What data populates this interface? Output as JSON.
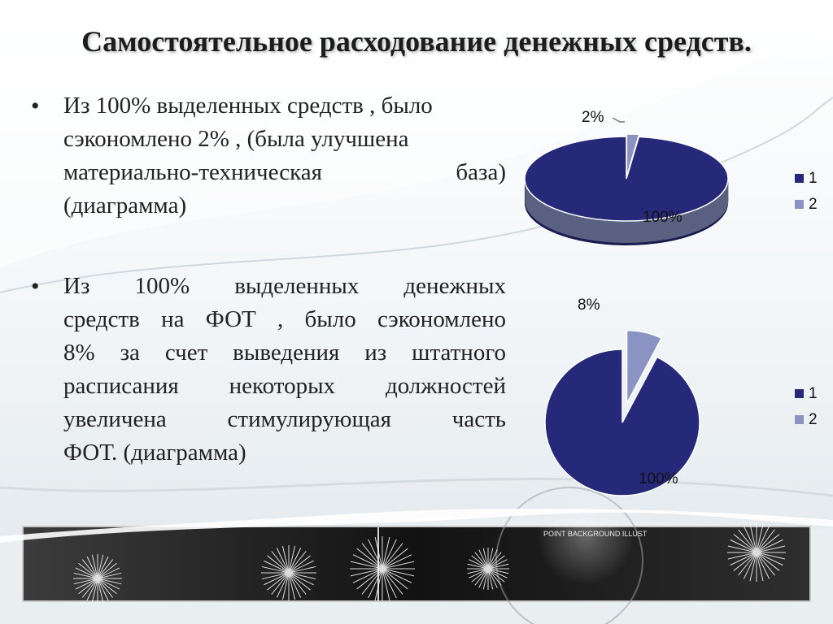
{
  "slide": {
    "title": "Самостоятельное расходование денежных средств.",
    "bullets": [
      {
        "marker": "•",
        "lines": [
          "Из 100% выделенных средств  , было",
          "сэкономлено 2% , (была улучшена",
          "материально-техническая база)",
          "(диаграмма)"
        ]
      },
      {
        "marker": "•",
        "lines": [
          "Из 100% выделенных денежных",
          "средств на ФОТ , было сэкономлено",
          "8% за счет выведения из штатного",
          "расписания некоторых должностей",
          "увеличена стимулирующая часть",
          "ФОТ. (диаграмма)"
        ]
      }
    ],
    "banner_text": "POINT BACKGROUND ILLUST"
  },
  "chart_data": [
    {
      "type": "pie",
      "view": "3d-tilted",
      "categories": [
        "1",
        "2"
      ],
      "values": [
        100,
        2
      ],
      "data_labels": [
        "100%",
        "2%"
      ],
      "colors": [
        "#26287a",
        "#8b93c3"
      ],
      "legend": {
        "placement": "right",
        "entries": [
          "1",
          "2"
        ]
      }
    },
    {
      "type": "pie",
      "view": "exploded",
      "categories": [
        "1",
        "2"
      ],
      "values": [
        100,
        8
      ],
      "data_labels": [
        "100%",
        "8%"
      ],
      "colors": [
        "#26287a",
        "#8b93c3"
      ],
      "legend": {
        "placement": "right",
        "entries": [
          "1",
          "2"
        ]
      }
    }
  ]
}
